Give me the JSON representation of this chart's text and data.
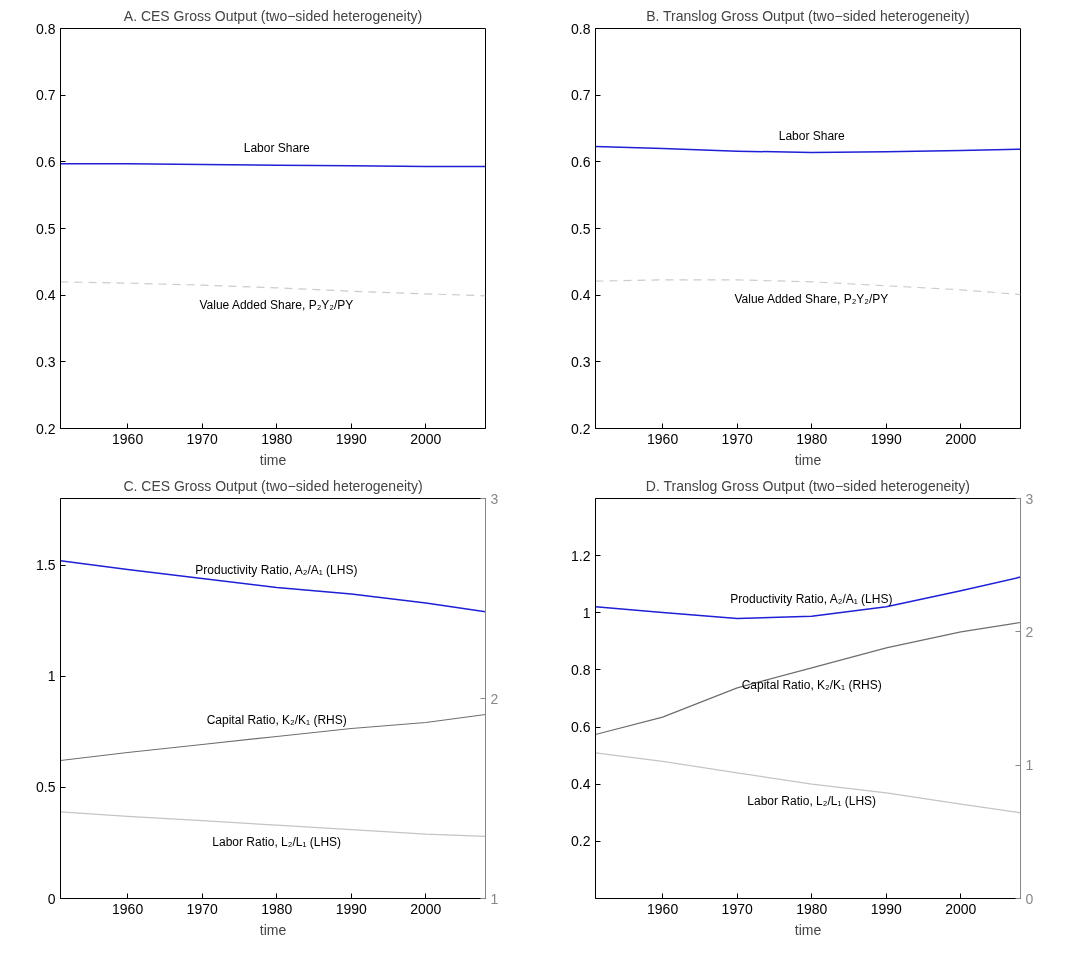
{
  "chart_data": [
    {
      "type": "line",
      "title": "A. CES Gross Output (two−sided heterogeneity)",
      "xlabel": "time",
      "x": [
        1951,
        1960,
        1970,
        1980,
        1990,
        2000,
        2008
      ],
      "xlim": [
        1951,
        2008
      ],
      "xticks": [
        1960,
        1970,
        1980,
        1990,
        2000
      ],
      "ylim": [
        0.2,
        0.8
      ],
      "yticks": [
        0.2,
        0.3,
        0.4,
        0.5,
        0.6,
        0.7,
        0.8
      ],
      "series": [
        {
          "name": "Labor Share",
          "color": "#1f1fd6",
          "values": [
            0.597,
            0.597,
            0.596,
            0.595,
            0.594,
            0.593,
            0.593
          ]
        },
        {
          "name": "Value Added Share, P₂Y₂/PY",
          "color": "#cccccc",
          "line_style": "dashed",
          "values": [
            0.42,
            0.418,
            0.415,
            0.411,
            0.406,
            0.402,
            0.399
          ]
        }
      ]
    },
    {
      "type": "line",
      "title": "B. Translog Gross Output (two−sided heterogeneity)",
      "xlabel": "time",
      "x": [
        1951,
        1960,
        1970,
        1980,
        1990,
        2000,
        2008
      ],
      "xlim": [
        1951,
        2008
      ],
      "xticks": [
        1960,
        1970,
        1980,
        1990,
        2000
      ],
      "ylim": [
        0.2,
        0.8
      ],
      "yticks": [
        0.2,
        0.3,
        0.4,
        0.5,
        0.6,
        0.7,
        0.8
      ],
      "series": [
        {
          "name": "Labor Share",
          "color": "#1f1fd6",
          "values": [
            0.623,
            0.62,
            0.616,
            0.614,
            0.615,
            0.617,
            0.619
          ]
        },
        {
          "name": "Value Added Share, P₂Y₂/PY",
          "color": "#cccccc",
          "line_style": "dashed",
          "values": [
            0.421,
            0.423,
            0.423,
            0.42,
            0.414,
            0.408,
            0.401
          ]
        }
      ]
    },
    {
      "type": "line",
      "title": "C. CES Gross Output (two−sided heterogeneity)",
      "xlabel": "time",
      "x": [
        1951,
        1960,
        1970,
        1980,
        1990,
        2000,
        2008
      ],
      "xlim": [
        1951,
        2008
      ],
      "xticks": [
        1960,
        1970,
        1980,
        1990,
        2000
      ],
      "ylim": [
        0,
        1.8
      ],
      "yticks": [
        0,
        0.5,
        1,
        1.5
      ],
      "y2lim": [
        1,
        3
      ],
      "y2ticks": [
        1,
        2,
        3
      ],
      "series": [
        {
          "name": "Productivity Ratio, A₂/A₁ (LHS)",
          "color": "#1f1fd6",
          "values": [
            1.52,
            1.48,
            1.44,
            1.4,
            1.37,
            1.33,
            1.29
          ]
        },
        {
          "name": "Capital Ratio, K₂/K₁ (RHS)",
          "color": "#6e6e6e",
          "axis": "y2",
          "values": [
            1.69,
            1.73,
            1.77,
            1.81,
            1.85,
            1.88,
            1.92
          ]
        },
        {
          "name": "Labor Ratio, L₂/L₁ (LHS)",
          "color": "#c4c4c4",
          "values": [
            0.39,
            0.37,
            0.35,
            0.33,
            0.31,
            0.29,
            0.28
          ]
        }
      ]
    },
    {
      "type": "line",
      "title": "D. Translog Gross Output (two−sided heterogeneity)",
      "xlabel": "time",
      "x": [
        1951,
        1960,
        1970,
        1980,
        1990,
        2000,
        2008
      ],
      "xlim": [
        1951,
        2008
      ],
      "xticks": [
        1960,
        1970,
        1980,
        1990,
        2000
      ],
      "ylim": [
        0,
        1.4
      ],
      "yticks": [
        0.2,
        0.4,
        0.6,
        0.8,
        1,
        1.2
      ],
      "y2lim": [
        0,
        3
      ],
      "y2ticks": [
        0,
        1,
        2,
        3
      ],
      "series": [
        {
          "name": "Productivity Ratio, A₂/A₁ (LHS)",
          "color": "#1f1fd6",
          "values": [
            1.021,
            1.001,
            0.98,
            0.988,
            1.021,
            1.077,
            1.125
          ]
        },
        {
          "name": "Capital Ratio, K₂/K₁ (RHS)",
          "color": "#6e6e6e",
          "axis": "y2",
          "values": [
            1.23,
            1.36,
            1.58,
            1.73,
            1.88,
            2.0,
            2.07
          ]
        },
        {
          "name": "Labor Ratio, L₂/L₁ (LHS)",
          "color": "#c4c4c4",
          "values": [
            0.51,
            0.48,
            0.44,
            0.4,
            0.37,
            0.33,
            0.3
          ]
        }
      ]
    }
  ]
}
